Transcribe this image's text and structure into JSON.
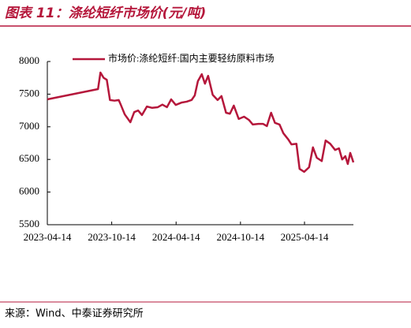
{
  "header": {
    "title": "图表 11：涤纶短纤市场价(元/吨)"
  },
  "chart_data": {
    "type": "line",
    "color": "#b5173b",
    "grid": false,
    "x": [
      "2023-04-14",
      "2023-09-05",
      "2023-09-12",
      "2023-09-21",
      "2023-09-30",
      "2023-10-09",
      "2023-10-22",
      "2023-11-03",
      "2023-11-09",
      "2023-11-20",
      "2023-12-06",
      "2023-12-17",
      "2023-12-28",
      "2024-01-08",
      "2024-01-22",
      "2024-02-06",
      "2024-02-22",
      "2024-03-06",
      "2024-03-19",
      "2024-03-31",
      "2024-04-13",
      "2024-04-29",
      "2024-05-14",
      "2024-05-28",
      "2024-06-06",
      "2024-06-15",
      "2024-06-26",
      "2024-07-05",
      "2024-07-14",
      "2024-07-27",
      "2024-08-10",
      "2024-08-21",
      "2024-09-03",
      "2024-09-14",
      "2024-09-25",
      "2024-10-09",
      "2024-10-24",
      "2024-11-07",
      "2024-11-18",
      "2024-12-04",
      "2024-12-17",
      "2024-12-28",
      "2025-01-09",
      "2025-01-20",
      "2025-02-02",
      "2025-02-13",
      "2025-02-27",
      "2025-03-08",
      "2025-03-22",
      "2025-03-31",
      "2025-04-13",
      "2025-04-27",
      "2025-05-08",
      "2025-05-19",
      "2025-06-02",
      "2025-06-13",
      "2025-06-26",
      "2025-07-10",
      "2025-07-21",
      "2025-07-30",
      "2025-08-08",
      "2025-08-15",
      "2025-08-22",
      "2025-08-31"
    ],
    "series": [
      {
        "name": "市场价:涤纶短纤:国内主要轻纺原料市场",
        "color": "#b5173b",
        "values": [
          7420,
          7577,
          7831,
          7750,
          7720,
          7410,
          7400,
          7410,
          7335,
          7190,
          7070,
          7225,
          7250,
          7180,
          7310,
          7290,
          7300,
          7340,
          7300,
          7420,
          7335,
          7370,
          7385,
          7410,
          7480,
          7700,
          7805,
          7660,
          7780,
          7490,
          7410,
          7470,
          7215,
          7200,
          7325,
          7120,
          7155,
          7105,
          7035,
          7045,
          7045,
          7010,
          7215,
          7060,
          7035,
          6900,
          6805,
          6730,
          6740,
          6355,
          6310,
          6380,
          6685,
          6525,
          6475,
          6790,
          6740,
          6645,
          6670,
          6500,
          6550,
          6430,
          6600,
          6455
        ]
      }
    ],
    "xlim": [
      "2023-04-14",
      "2025-08-31"
    ],
    "xticks": [
      "2023-04-14",
      "2023-10-14",
      "2024-04-14",
      "2024-10-14",
      "2025-04-14"
    ],
    "ylim": [
      5500,
      8000
    ],
    "yticks": [
      5500,
      6000,
      6500,
      7000,
      7500,
      8000
    ]
  },
  "footer": {
    "source": "来源：Wind、中泰证券研究所"
  }
}
